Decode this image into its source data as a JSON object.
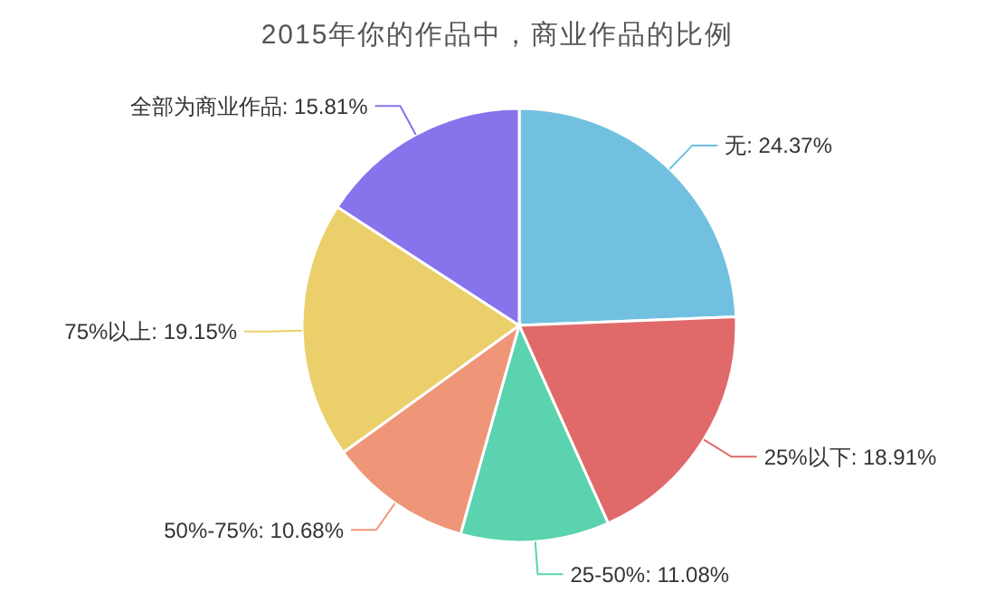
{
  "chart_data": {
    "type": "pie",
    "title": "2015年你的作品中，商业作品的比例",
    "categories": [
      "无",
      "25%以下",
      "25-50%",
      "50%-75%",
      "75%以上",
      "全部为商业作品"
    ],
    "values": [
      24.37,
      18.91,
      11.08,
      10.68,
      19.15,
      15.81
    ],
    "value_labels": [
      "24.37%",
      "18.91%",
      "11.08%",
      "10.68%",
      "19.15%",
      "15.81%"
    ],
    "colors": [
      "#72c0e0",
      "#e06a6a",
      "#5ad3ae",
      "#ef9679",
      "#ebcf6a",
      "#8773ec"
    ]
  }
}
